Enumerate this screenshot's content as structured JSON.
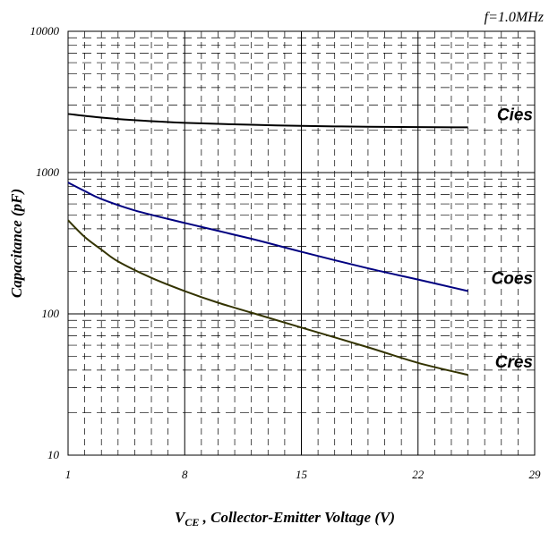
{
  "chart_data": {
    "type": "line",
    "annotation": "f=1.0MHz",
    "xlabel_main": "V",
    "xlabel_sub": "CE",
    "xlabel_rest": " , Collector-Emitter Voltage (V)",
    "ylabel": "Capacitance (pF)",
    "x_ticks": [
      "1",
      "8",
      "15",
      "22",
      "29"
    ],
    "y_ticks": [
      "10",
      "100",
      "1000",
      "10000"
    ],
    "xlim": [
      1,
      29
    ],
    "ylim": [
      10,
      10000
    ],
    "yscale": "log",
    "grid": true,
    "series": [
      {
        "name": "Cies",
        "color": "#000000",
        "x": [
          1,
          3,
          5,
          8,
          12,
          15,
          19,
          22,
          25
        ],
        "y": [
          2600,
          2450,
          2350,
          2250,
          2180,
          2140,
          2110,
          2100,
          2090
        ]
      },
      {
        "name": "Coes",
        "color": "#000080",
        "x": [
          1,
          2,
          3,
          5,
          8,
          12,
          15,
          19,
          22,
          25
        ],
        "y": [
          850,
          740,
          650,
          540,
          440,
          340,
          275,
          210,
          175,
          145
        ]
      },
      {
        "name": "Cres",
        "color": "#333300",
        "x": [
          1,
          2,
          3,
          4,
          6,
          8,
          10,
          12,
          15,
          19,
          22,
          25
        ],
        "y": [
          460,
          350,
          285,
          235,
          180,
          145,
          120,
          102,
          80,
          58,
          45,
          37
        ]
      }
    ]
  }
}
